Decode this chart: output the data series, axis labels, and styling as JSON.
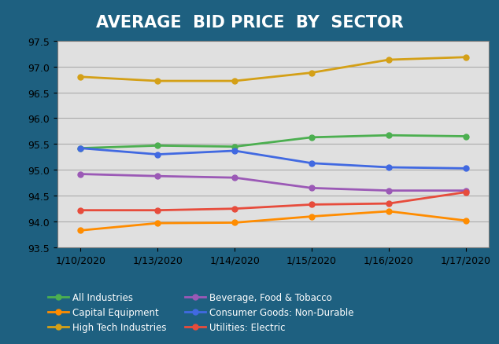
{
  "title": "AVERAGE  BID PRICE  BY  SECTOR",
  "x_labels": [
    "1/10/2020",
    "1/13/2020",
    "1/14/2020",
    "1/15/2020",
    "1/16/2020",
    "1/17/2020"
  ],
  "series": [
    {
      "name": "All Industries",
      "color": "#4caf50",
      "values": [
        95.42,
        95.47,
        95.45,
        95.63,
        95.67,
        95.65
      ]
    },
    {
      "name": "Beverage, Food & Tobacco",
      "color": "#9b59b6",
      "values": [
        94.92,
        94.88,
        94.85,
        94.65,
        94.6,
        94.6
      ]
    },
    {
      "name": "Capital Equipment",
      "color": "#ff8c00",
      "values": [
        93.83,
        93.97,
        93.98,
        94.1,
        94.2,
        94.02
      ]
    },
    {
      "name": "Consumer Goods: Non-Durable",
      "color": "#4169e1",
      "values": [
        95.42,
        95.3,
        95.37,
        95.13,
        95.05,
        95.03
      ]
    },
    {
      "name": "High Tech Industries",
      "color": "#d4a017",
      "values": [
        96.8,
        96.72,
        96.72,
        96.88,
        97.13,
        97.18
      ]
    },
    {
      "name": "Utilities: Electric",
      "color": "#e74c3c",
      "values": [
        94.22,
        94.22,
        94.25,
        94.33,
        94.35,
        94.57
      ]
    }
  ],
  "ylim": [
    93.5,
    97.5
  ],
  "yticks": [
    93.5,
    94.0,
    94.5,
    95.0,
    95.5,
    96.0,
    96.5,
    97.0,
    97.5
  ],
  "background_color": "#e0e0e0",
  "outer_background": "#1e6080",
  "title_color": "#ffffff",
  "title_fontsize": 15,
  "legend_text_color": "#ffffff",
  "grid_color": "#aaaaaa",
  "marker": "o",
  "linewidth": 2.0,
  "markersize": 5
}
